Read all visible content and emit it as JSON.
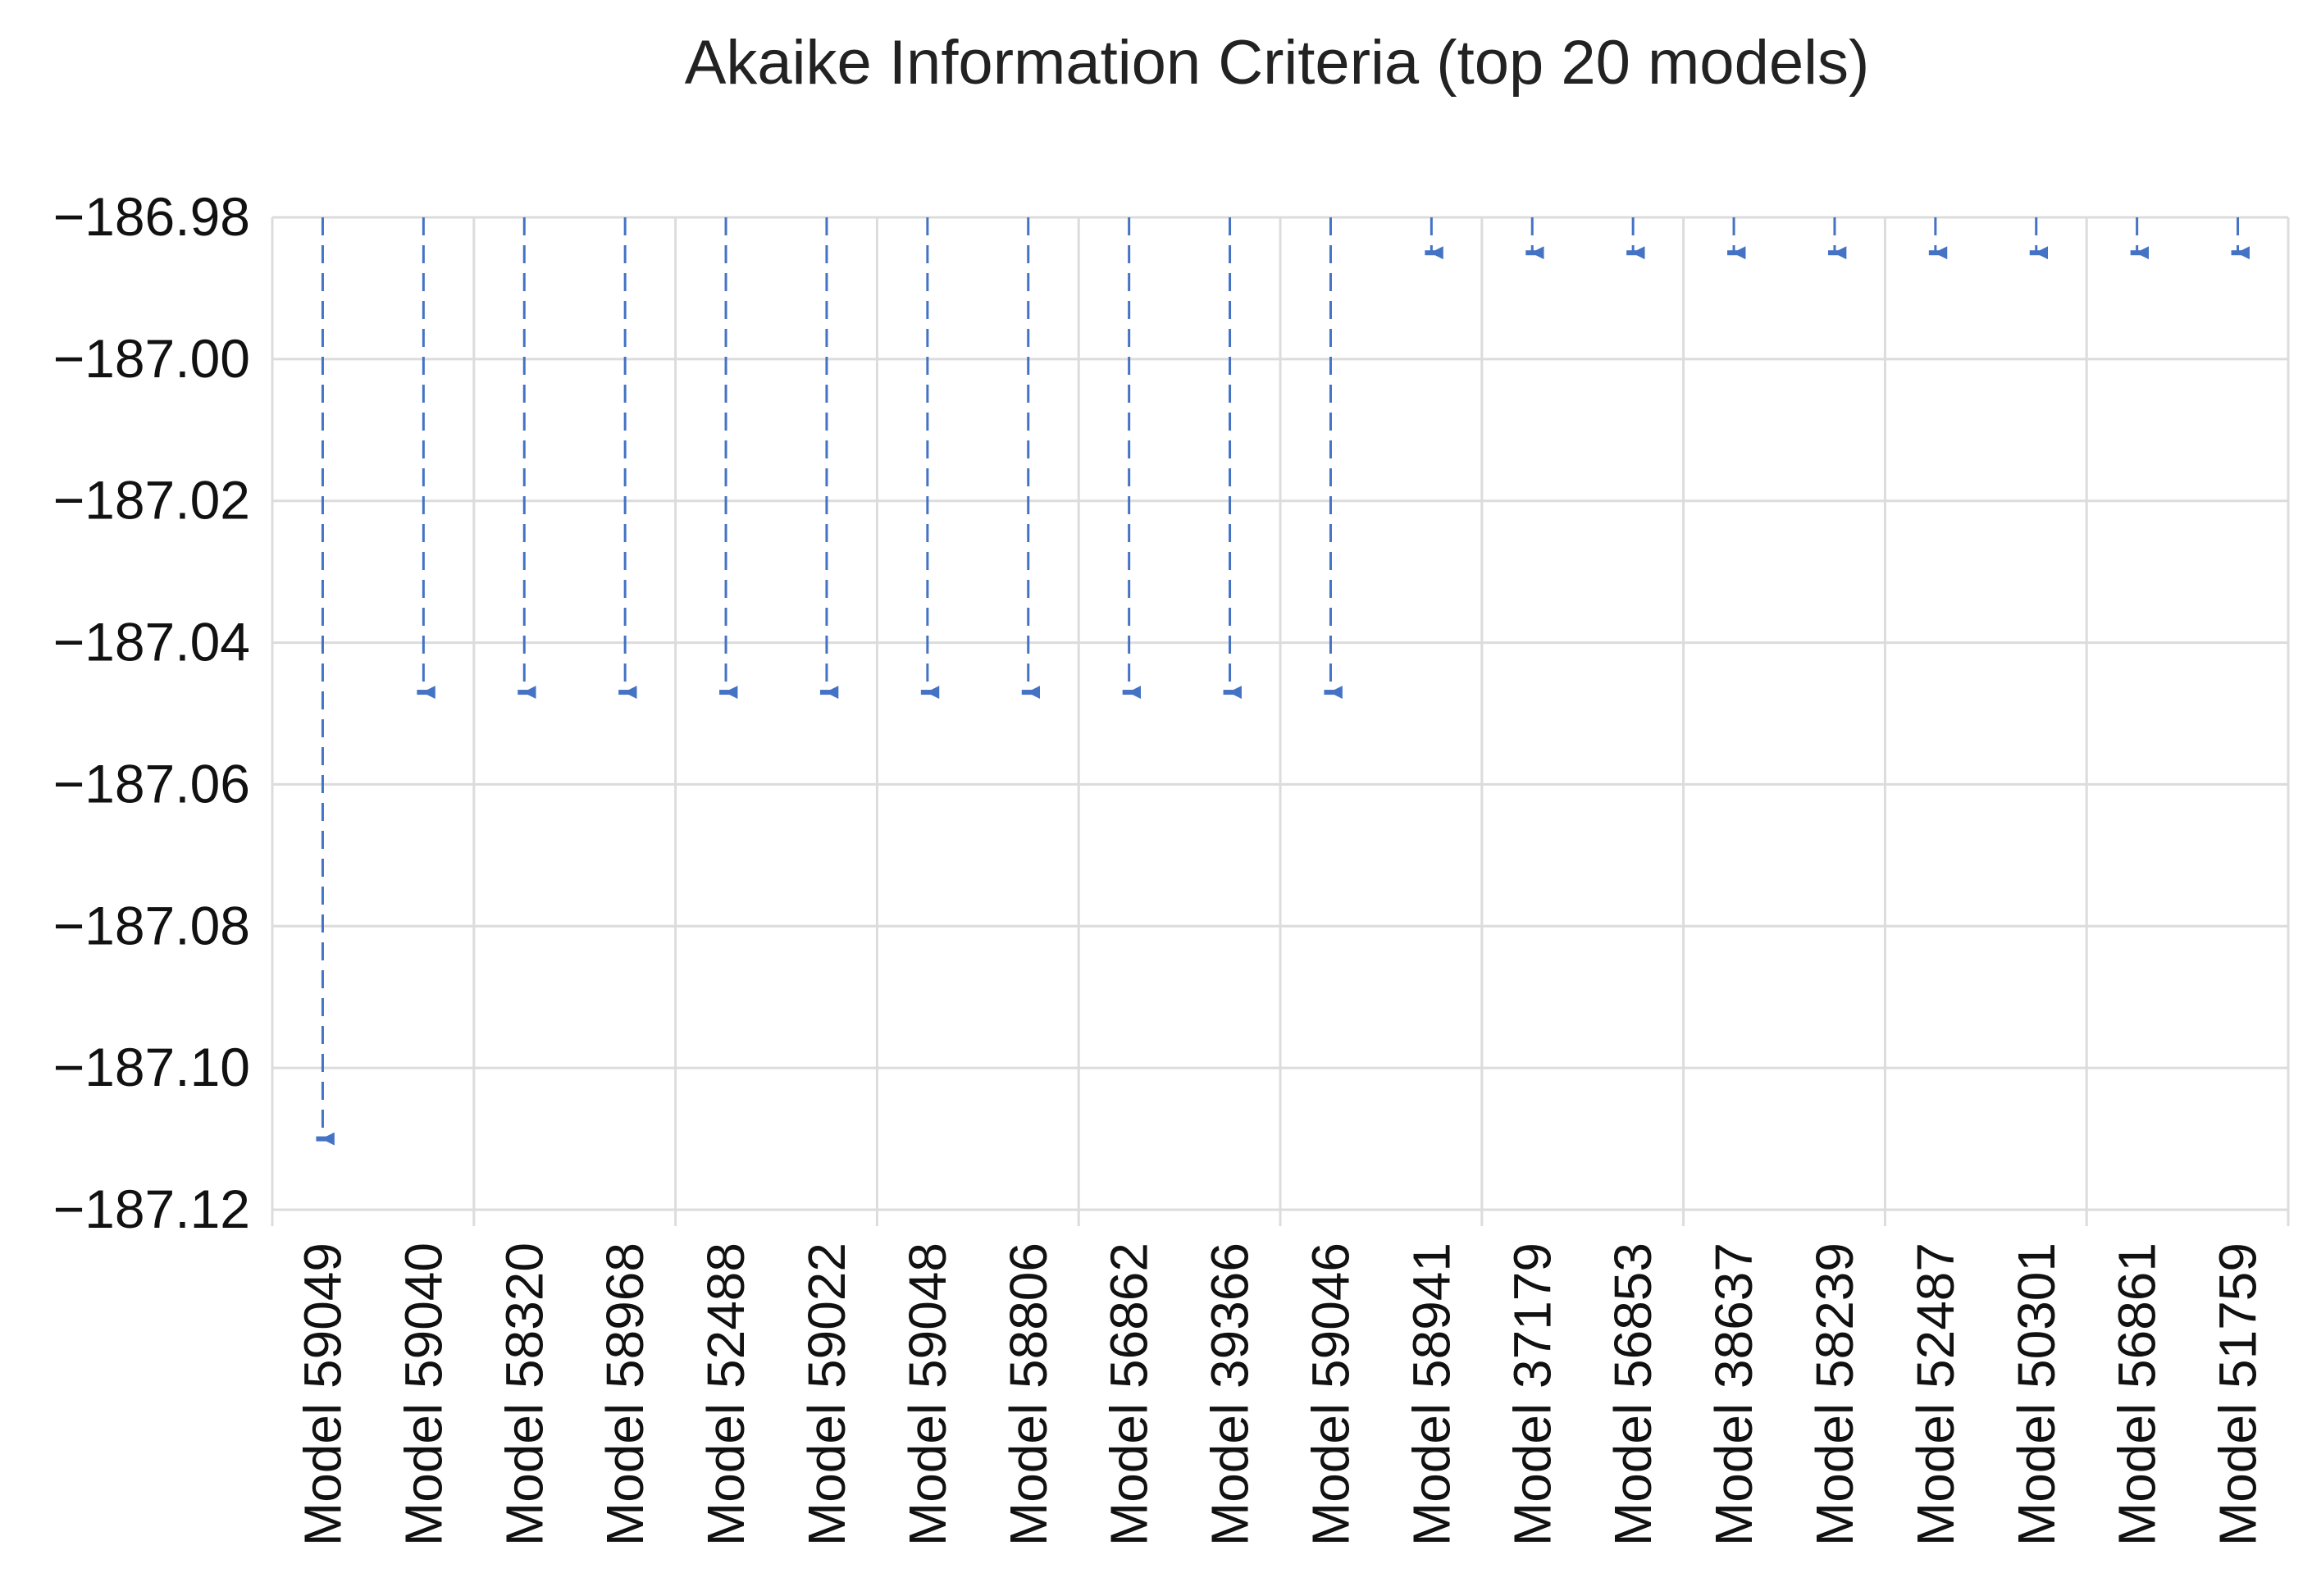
{
  "chart_data": {
    "type": "scatter",
    "title": "Akaike Information Criteria (top 20 models)",
    "xlabel": "",
    "ylabel": "",
    "ylim": [
      -187.12,
      -186.98
    ],
    "yticks": [
      -186.98,
      -187.0,
      -187.02,
      -187.04,
      -187.06,
      -187.08,
      -187.1,
      -187.12
    ],
    "ytick_labels": [
      "−186.98",
      "−187.00",
      "−187.02",
      "−187.04",
      "−187.06",
      "−187.08",
      "−187.10",
      "−187.12"
    ],
    "grid": true,
    "legend": "none",
    "marker_style": "dashed drop-line with arrow marker",
    "color": "#4472c4",
    "categories": [
      "Model 59049",
      "Model 59040",
      "Model 58320",
      "Model 58968",
      "Model 52488",
      "Model 59022",
      "Model 59048",
      "Model 58806",
      "Model 56862",
      "Model 39366",
      "Model 59046",
      "Model 58941",
      "Model 37179",
      "Model 56853",
      "Model 38637",
      "Model 58239",
      "Model 52487",
      "Model 50301",
      "Model 56861",
      "Model 51759"
    ],
    "values": [
      -187.11,
      -187.047,
      -187.047,
      -187.047,
      -187.047,
      -187.047,
      -187.047,
      -187.047,
      -187.047,
      -187.047,
      -187.047,
      -186.985,
      -186.985,
      -186.985,
      -186.985,
      -186.985,
      -186.985,
      -186.985,
      -186.985,
      -186.985
    ]
  }
}
